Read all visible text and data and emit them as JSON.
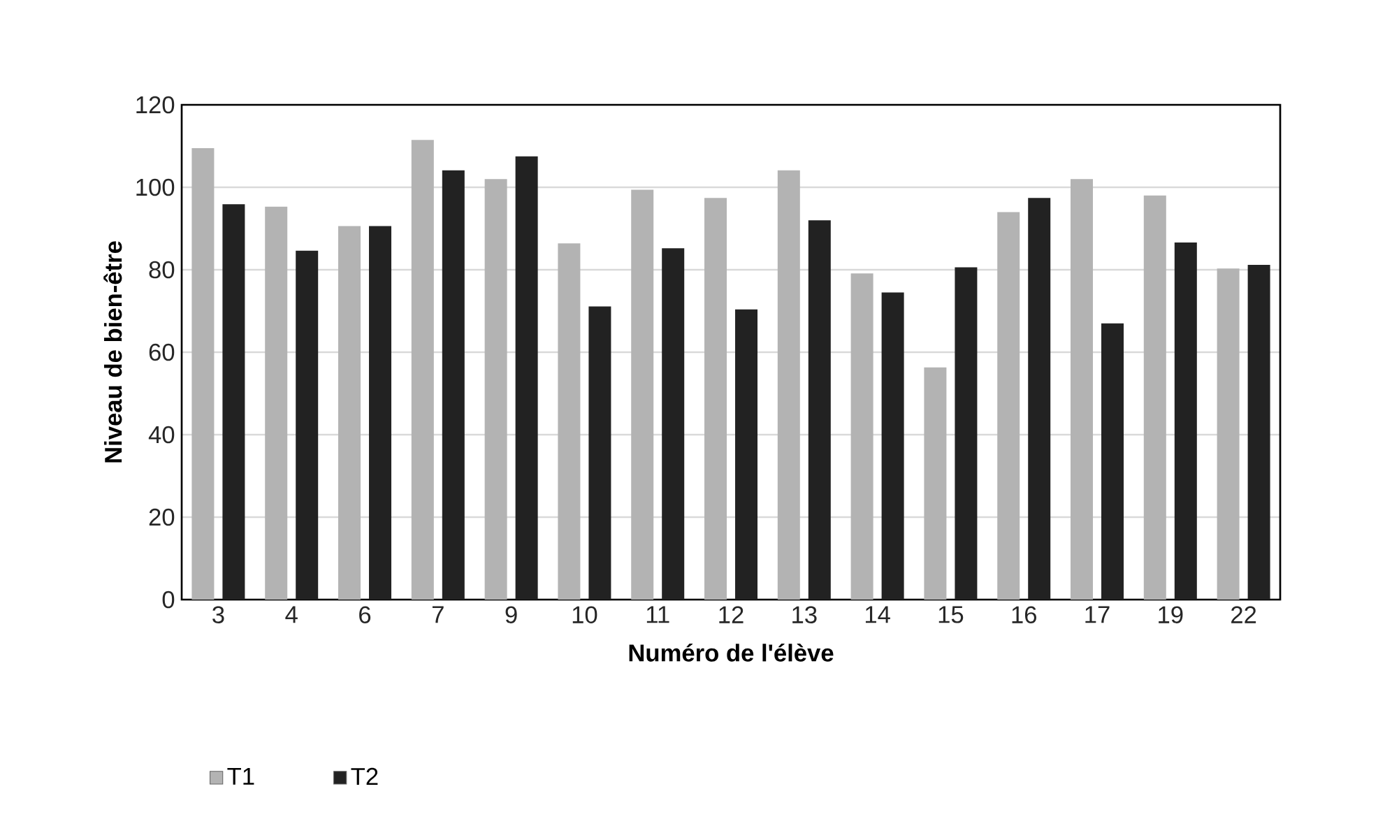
{
  "chart_data": {
    "type": "bar",
    "xlabel": "Numéro de l'élève",
    "ylabel": "Niveau de bien-être",
    "categories": [
      "3",
      "4",
      "6",
      "7",
      "9",
      "10",
      "11",
      "12",
      "13",
      "14",
      "15",
      "16",
      "17",
      "19",
      "22"
    ],
    "series": [
      {
        "name": "T1",
        "color": "#b3b3b3",
        "values": [
          109.5,
          95.3,
          90.6,
          111.5,
          102.0,
          86.4,
          99.4,
          97.4,
          104.1,
          79.1,
          56.3,
          94.0,
          102.0,
          98.0,
          80.3
        ]
      },
      {
        "name": "T2",
        "color": "#222222",
        "values": [
          95.9,
          84.6,
          90.6,
          104.1,
          107.5,
          71.1,
          85.2,
          70.4,
          92.0,
          74.5,
          80.6,
          97.4,
          67.0,
          86.6,
          81.2
        ]
      }
    ],
    "ylim": [
      0,
      120
    ],
    "yticks": [
      0,
      20,
      40,
      60,
      80,
      100,
      120
    ],
    "grid": "y",
    "legend": "bottom left"
  }
}
